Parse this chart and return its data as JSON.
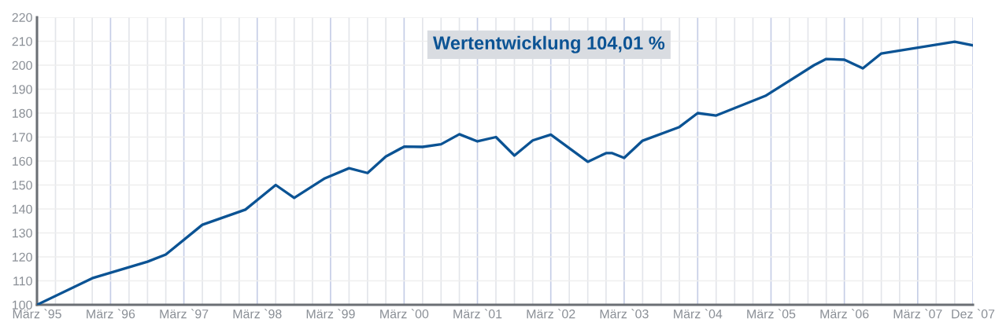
{
  "chart_data": {
    "type": "line",
    "annotations": [
      "Wertentwicklung 104,01 %"
    ],
    "x": [
      "1995-03",
      "1995-12",
      "1996-09",
      "1996-12",
      "1997-06",
      "1998-01",
      "1998-06",
      "1998-09",
      "1999-02",
      "1999-06",
      "1999-09",
      "1999-12",
      "2000-03",
      "2000-06",
      "2000-09",
      "2000-12",
      "2001-03",
      "2001-06",
      "2001-09",
      "2001-12",
      "2002-03",
      "2002-09",
      "2002-12",
      "2003-01",
      "2003-03",
      "2003-06",
      "2003-12",
      "2004-03",
      "2004-06",
      "2005-02",
      "2005-10",
      "2005-12",
      "2006-03",
      "2006-06",
      "2006-09",
      "2007-09",
      "2007-12"
    ],
    "series": [
      {
        "color": "#0b5394",
        "values": [
          100,
          111.1,
          118,
          121,
          133.4,
          139.7,
          150,
          144.6,
          152.8,
          157,
          155,
          161.9,
          166,
          165.9,
          167,
          171.2,
          168.2,
          170,
          162.3,
          168.6,
          171,
          159.7,
          163.3,
          163.3,
          161.3,
          168.5,
          174.2,
          180,
          179,
          187.2,
          200,
          202.6,
          202.3,
          198.7,
          204.9,
          209.8,
          208.3
        ]
      }
    ],
    "xlim": [
      "1995-03",
      "2007-12"
    ],
    "xticks": [
      {
        "value": "1995-03",
        "label": "März `95"
      },
      {
        "value": "1996-03",
        "label": "März `96"
      },
      {
        "value": "1997-03",
        "label": "März `97"
      },
      {
        "value": "1998-03",
        "label": "März `98"
      },
      {
        "value": "1999-03",
        "label": "März `99"
      },
      {
        "value": "2000-03",
        "label": "März `00"
      },
      {
        "value": "2001-03",
        "label": "März `01"
      },
      {
        "value": "2002-03",
        "label": "März `02"
      },
      {
        "value": "2003-03",
        "label": "März `03"
      },
      {
        "value": "2004-03",
        "label": "März `04"
      },
      {
        "value": "2005-03",
        "label": "März `05"
      },
      {
        "value": "2006-03",
        "label": "März `06"
      },
      {
        "value": "2007-03",
        "label": "März `07"
      },
      {
        "value": "2007-12",
        "label": "Dez `07"
      }
    ],
    "ylim": [
      100,
      220
    ],
    "yticks": [
      100,
      110,
      120,
      130,
      140,
      150,
      160,
      170,
      180,
      190,
      200,
      210,
      220
    ],
    "grid": true,
    "marker": "none",
    "line_style": "solid"
  }
}
